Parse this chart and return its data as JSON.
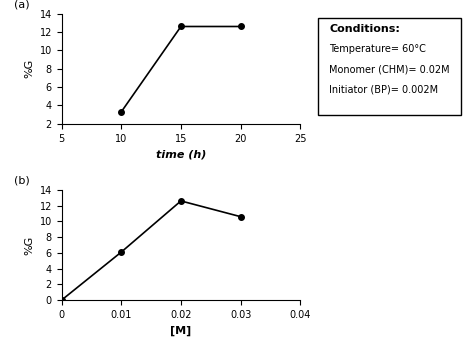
{
  "plot_a": {
    "x": [
      10,
      15,
      20
    ],
    "y": [
      3.3,
      12.6,
      12.6
    ],
    "xlabel": "time (h)",
    "ylabel": "%G",
    "xlim": [
      5,
      25
    ],
    "ylim": [
      2,
      14
    ],
    "xticks": [
      5,
      10,
      15,
      20,
      25
    ],
    "yticks": [
      2,
      4,
      6,
      8,
      10,
      12,
      14
    ],
    "label": "(a)"
  },
  "plot_b": {
    "x": [
      0,
      0.01,
      0.02,
      0.03
    ],
    "y": [
      0,
      6.1,
      12.6,
      10.6
    ],
    "xlabel": "[M]",
    "ylabel": "%G",
    "xlim": [
      0,
      0.04
    ],
    "ylim": [
      0,
      14
    ],
    "xticks": [
      0,
      0.01,
      0.02,
      0.03,
      0.04
    ],
    "yticks": [
      0,
      2,
      4,
      6,
      8,
      10,
      12,
      14
    ],
    "label": "(b)"
  },
  "conditions": {
    "title": "Conditions:",
    "lines": [
      "Temperature= 60°C",
      "Monomer (CHM)= 0.02M",
      "Initiator (BP)= 0.002M"
    ]
  },
  "line_color": "#000000",
  "marker": "o",
  "marker_size": 4,
  "marker_facecolor": "#000000"
}
